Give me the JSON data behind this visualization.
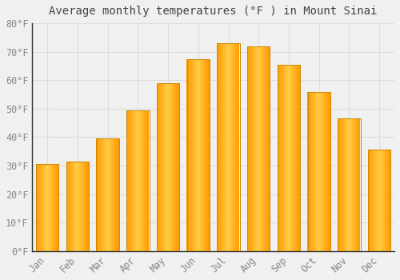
{
  "title": "Average monthly temperatures (°F ) in Mount Sinai",
  "months": [
    "Jan",
    "Feb",
    "Mar",
    "Apr",
    "May",
    "Jun",
    "Jul",
    "Aug",
    "Sep",
    "Oct",
    "Nov",
    "Dec"
  ],
  "values": [
    30.5,
    31.5,
    39.5,
    49.5,
    59.0,
    67.5,
    73.0,
    72.0,
    65.5,
    56.0,
    46.5,
    35.5
  ],
  "bar_color_main": "#FFA500",
  "bar_color_light": "#FFD060",
  "bar_color_dark": "#E08000",
  "bar_edge_color": "#CC8800",
  "background_color": "#F0F0F0",
  "grid_color": "#DDDDDD",
  "tick_label_color": "#888888",
  "title_color": "#444444",
  "spine_color": "#333333",
  "ylim": [
    0,
    80
  ],
  "ytick_step": 10,
  "title_fontsize": 10,
  "tick_fontsize": 8.5,
  "bar_width": 0.75
}
